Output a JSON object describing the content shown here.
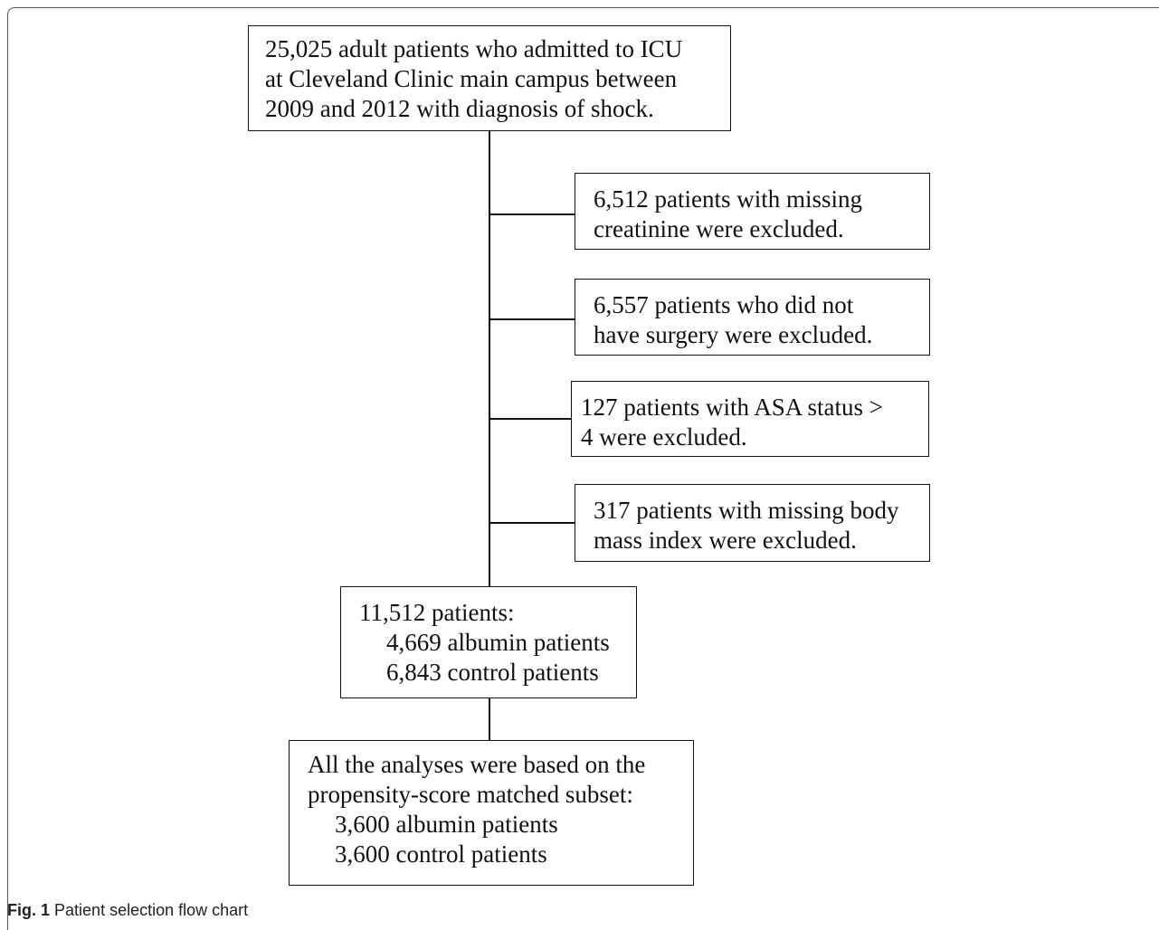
{
  "flowchart": {
    "top_box": {
      "lines": [
        "25,025 adult patients who admitted to ICU",
        "at Cleveland Clinic main campus between",
        "2009 and 2012 with diagnosis of shock."
      ]
    },
    "exclusions": [
      {
        "lines": [
          "6,512 patients with missing",
          "creatinine were excluded."
        ]
      },
      {
        "lines": [
          "6,557 patients who did not",
          "have surgery were excluded."
        ]
      },
      {
        "lines": [
          "127 patients with ASA status >",
          "4 were excluded."
        ]
      },
      {
        "lines": [
          "317 patients with missing body",
          "mass index were excluded."
        ]
      }
    ],
    "middle_box": {
      "lines": [
        "11,512 patients:",
        "4,669 albumin patients",
        "6,843 control patients"
      ]
    },
    "bottom_box": {
      "lines": [
        "All the analyses were based on the",
        "propensity-score matched subset:",
        "3,600 albumin patients",
        "3,600 control patients"
      ]
    }
  },
  "caption": {
    "label": "Fig. 1",
    "text": "Patient selection flow chart"
  }
}
